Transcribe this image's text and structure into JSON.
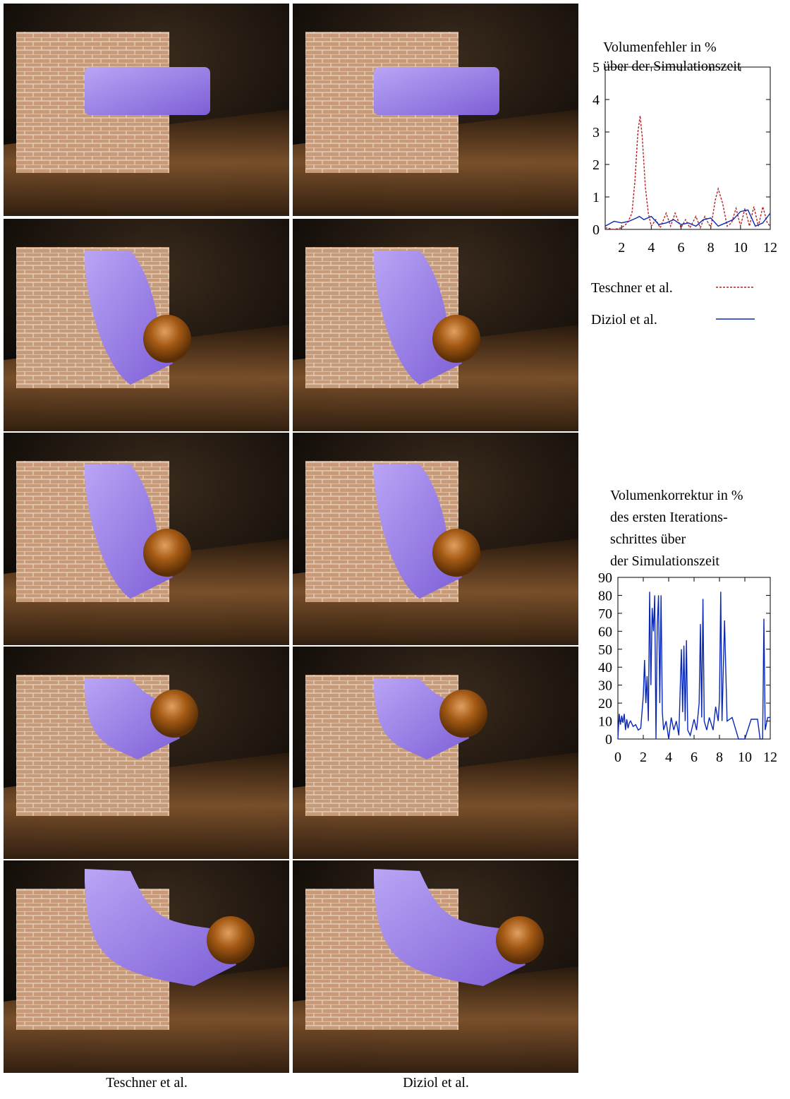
{
  "chart_data": [
    {
      "type": "line",
      "title": [
        "Volumenfehler in %",
        "über der Simulationszeit"
      ],
      "xlim": [
        0.9,
        12
      ],
      "xticks": [
        2,
        4,
        6,
        8,
        10,
        12
      ],
      "ylim": [
        0,
        5
      ],
      "yticks": [
        0,
        1,
        2,
        3,
        4,
        5
      ],
      "series": [
        {
          "name": "Teschner et al.",
          "color": "#b22222",
          "dash": true,
          "x": [
            0.9,
            1.5,
            2.0,
            2.4,
            2.7,
            2.9,
            3.1,
            3.25,
            3.4,
            3.6,
            3.8,
            4.0,
            4.3,
            4.6,
            5.0,
            5.3,
            5.6,
            6.0,
            6.3,
            6.6,
            7.0,
            7.3,
            7.6,
            8.0,
            8.3,
            8.5,
            8.8,
            9.1,
            9.4,
            9.7,
            10.0,
            10.3,
            10.6,
            10.9,
            11.2,
            11.5,
            11.8,
            12.0
          ],
          "values": [
            0.05,
            0,
            0.05,
            0.2,
            0.5,
            1.5,
            3,
            3.5,
            2.8,
            1.3,
            0.5,
            0.1,
            0.3,
            0.05,
            0.5,
            0.1,
            0.5,
            0.05,
            0.3,
            0.05,
            0.4,
            0.05,
            0.4,
            0.05,
            0.9,
            1.25,
            0.8,
            0.1,
            0.2,
            0.65,
            0.1,
            0.65,
            0.1,
            0.7,
            0.1,
            0.7,
            0.2,
            0.1
          ]
        },
        {
          "name": "Diziol et al.",
          "color": "#0a28b4",
          "dash": false,
          "x": [
            0.9,
            1.5,
            2,
            2.5,
            3,
            3.2,
            3.5,
            4,
            4.5,
            5,
            5.5,
            6,
            6.5,
            7,
            7.5,
            8,
            8.5,
            9,
            9.5,
            10,
            10.5,
            11,
            11.5,
            12
          ],
          "values": [
            0.1,
            0.25,
            0.2,
            0.25,
            0.35,
            0.4,
            0.3,
            0.4,
            0.15,
            0.2,
            0.3,
            0.15,
            0.2,
            0.1,
            0.3,
            0.35,
            0.1,
            0.2,
            0.3,
            0.55,
            0.6,
            0.1,
            0.2,
            0.5
          ]
        }
      ]
    },
    {
      "type": "line",
      "title": [
        "Volumenkorrektur in %",
        "des ersten Iterations-",
        "schrittes über",
        "der Simulationszeit"
      ],
      "xlim": [
        0,
        12
      ],
      "xticks": [
        0,
        2,
        4,
        6,
        8,
        10,
        12
      ],
      "ylim": [
        0,
        90
      ],
      "yticks": [
        0,
        10,
        20,
        30,
        40,
        50,
        60,
        70,
        80,
        90
      ],
      "series": [
        {
          "color": "#0a28b4",
          "dash": false,
          "x": [
            0,
            0.1,
            0.2,
            0.3,
            0.4,
            0.5,
            0.6,
            0.7,
            0.8,
            0.9,
            1.0,
            1.2,
            1.4,
            1.6,
            1.8,
            2.0,
            2.1,
            2.2,
            2.3,
            2.4,
            2.5,
            2.6,
            2.7,
            2.8,
            2.9,
            3.0,
            3.1,
            3.2,
            3.3,
            3.4,
            3.5,
            3.6,
            3.8,
            4.0,
            4.2,
            4.4,
            4.6,
            4.8,
            5.0,
            5.1,
            5.2,
            5.3,
            5.4,
            5.5,
            5.7,
            6.0,
            6.2,
            6.4,
            6.5,
            6.6,
            6.7,
            6.8,
            7.0,
            7.2,
            7.5,
            7.7,
            7.9,
            8.0,
            8.1,
            8.2,
            8.4,
            8.6,
            8.8,
            9.0,
            9.5,
            10.0,
            10.5,
            11.0,
            11.2,
            11.4,
            11.5,
            11.6,
            11.8,
            12
          ],
          "values": [
            0,
            14,
            8,
            13,
            9,
            14,
            5,
            11,
            6,
            9,
            10,
            7,
            8,
            5,
            6,
            24,
            44,
            20,
            35,
            10,
            82,
            30,
            73,
            60,
            80,
            0,
            63,
            80,
            20,
            80,
            15,
            5,
            10,
            0,
            12,
            5,
            10,
            2,
            50,
            15,
            52,
            10,
            55,
            5,
            2,
            11,
            5,
            20,
            64,
            12,
            78,
            10,
            5,
            12,
            5,
            18,
            10,
            22,
            82,
            10,
            66,
            10,
            11,
            12,
            0,
            0,
            11,
            11,
            0,
            0,
            67,
            5,
            12,
            12
          ]
        }
      ]
    }
  ],
  "captions": [
    "Teschner et al.",
    "Diziol et al."
  ]
}
